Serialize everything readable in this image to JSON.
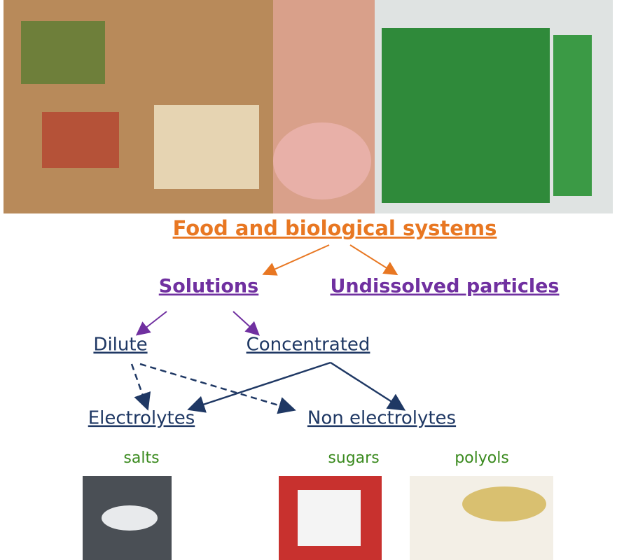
{
  "title": "Food and biological systems",
  "nodes": [
    {
      "label": "Solutions"
    },
    {
      "label": "Undissolved particles"
    },
    {
      "label": "Dilute"
    },
    {
      "label": "Concentrated"
    },
    {
      "label": "Electrolytes"
    },
    {
      "label": "Non electrolytes"
    }
  ],
  "examples": [
    "salts",
    "sugars",
    "polyols"
  ]
}
